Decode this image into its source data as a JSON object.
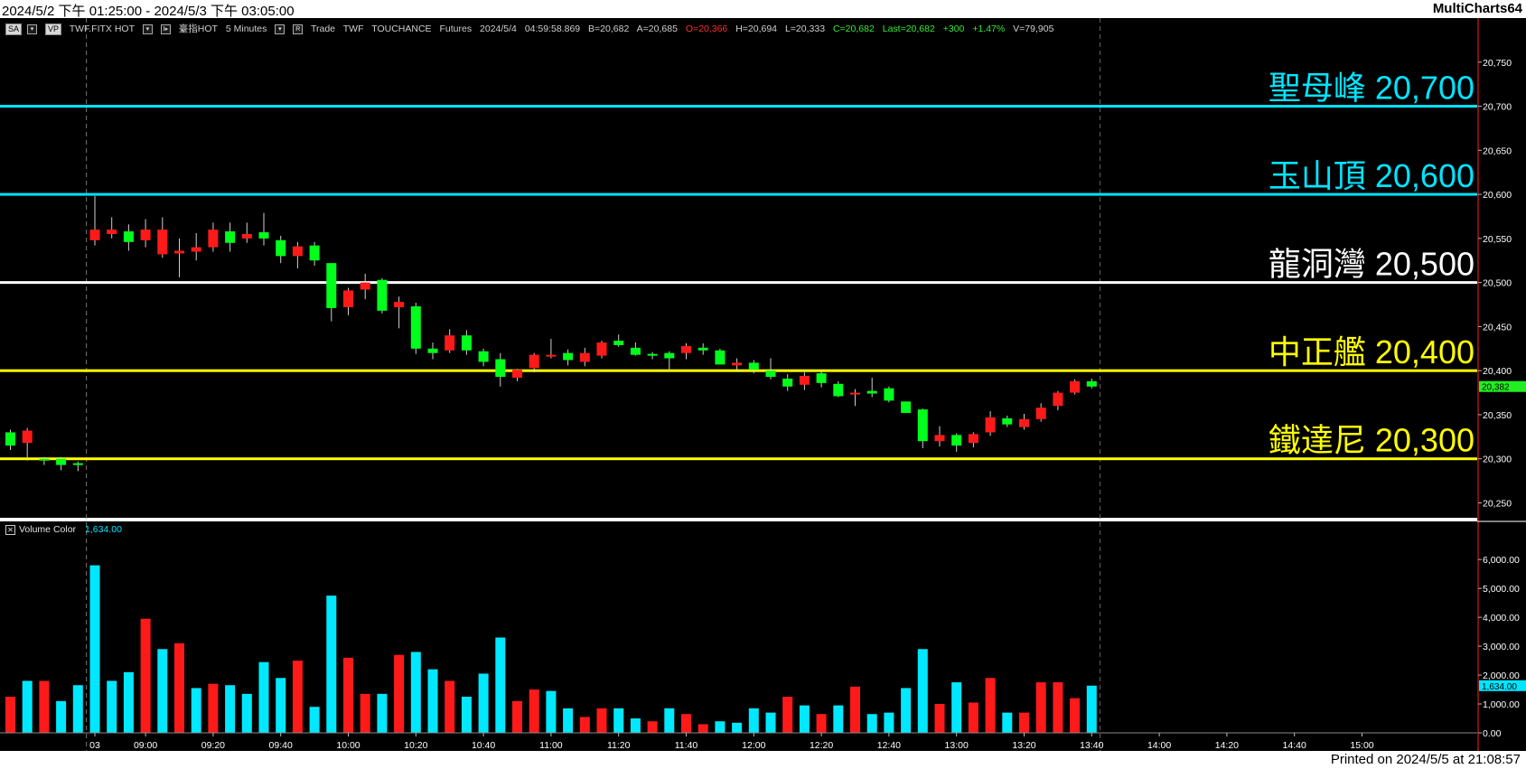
{
  "window": {
    "title_range": "2024/5/2 下午 01:25:00 - 2024/5/3 下午 03:05:00",
    "app_name": "MultiCharts64",
    "printed_on": "Printed on 2024/5/5 at 21:08:57"
  },
  "toolbar": {
    "sa_btn": "SA",
    "vp_btn": "VP",
    "symbol": "TWF.FITX HOT",
    "symbol_name": "臺指HOT",
    "interval": "5 Minutes",
    "r_btn": "R",
    "mode": "Trade",
    "exchange": "TWF",
    "datasource": "TOUCHANCE",
    "category": "Futures",
    "date": "2024/5/4",
    "time": "04:59:58.869",
    "bid": "B=20,682",
    "ask": "A=20,685",
    "open": "O=20,366",
    "high": "H=20,694",
    "low": "L=20,333",
    "close": "C=20,682",
    "last": "Last=20,682",
    "change": "+300",
    "change_pct": "+1.47%",
    "volume": "V=79,905"
  },
  "volume_panel": {
    "label": "Volume Color",
    "value": "1,634.00"
  },
  "colors": {
    "up": "#ff1a1a",
    "down": "#00ff1a",
    "vol_cyan": "#00e8ff",
    "vol_red": "#ff1a1a",
    "cyan_line": "#00e5ff",
    "white_line": "#ffffff",
    "yellow_line": "#ffff00"
  },
  "chart_data": [
    {
      "type": "candlestick",
      "title": "",
      "price_axis": {
        "ylim": [
          20230,
          20800
        ],
        "ticks": [
          20250,
          20300,
          20350,
          20400,
          20450,
          20500,
          20550,
          20600,
          20650,
          20700,
          20750
        ],
        "tick_labels": [
          "20,250",
          "20,300",
          "20,350",
          "20,400",
          "20,450",
          "20,500",
          "20,550",
          "20,600",
          "20,650",
          "20,700",
          "20,750"
        ]
      },
      "time_axis": {
        "tick_labels": [
          "03",
          "09:00",
          "09:20",
          "09:40",
          "10:00",
          "10:20",
          "10:40",
          "11:00",
          "11:20",
          "11:40",
          "12:00",
          "12:20",
          "12:40",
          "13:00",
          "13:20",
          "13:40",
          "14:00",
          "14:20",
          "14:40",
          "15:00"
        ],
        "tick_bar_index": [
          5,
          8,
          12,
          16,
          20,
          24,
          28,
          32,
          36,
          40,
          44,
          48,
          52,
          56,
          60,
          64,
          68,
          72,
          76,
          80
        ],
        "session_break_bar_index": 4.5,
        "last_bar_marker_index": 64.5
      },
      "current_price": 20382,
      "current_price_label": "20,382",
      "levels": [
        {
          "name": "聖母峰",
          "value_label": "20,700",
          "price": 20700,
          "color": "#00e5ff"
        },
        {
          "name": "玉山頂",
          "value_label": "20,600",
          "price": 20600,
          "color": "#00e5ff"
        },
        {
          "name": "龍洞灣",
          "value_label": "20,500",
          "price": 20500,
          "color": "#ffffff"
        },
        {
          "name": "中正艦",
          "value_label": "20,400",
          "price": 20400,
          "color": "#ffff00"
        },
        {
          "name": "鐵達尼",
          "value_label": "20,300",
          "price": 20300,
          "color": "#ffff00"
        }
      ],
      "candles": [
        [
          20330,
          20333,
          20310,
          20315
        ],
        [
          20318,
          20335,
          20298,
          20332
        ],
        [
          20300,
          20302,
          20293,
          20298
        ],
        [
          20300,
          20302,
          20287,
          20293
        ],
        [
          20295,
          20297,
          20286,
          20293
        ],
        [
          20548,
          20598,
          20542,
          20560
        ],
        [
          20555,
          20574,
          20550,
          20560
        ],
        [
          20558,
          20566,
          20536,
          20546
        ],
        [
          20548,
          20572,
          20540,
          20560
        ],
        [
          20532,
          20574,
          20528,
          20560
        ],
        [
          20533,
          20550,
          20506,
          20536
        ],
        [
          20535,
          20556,
          20525,
          20540
        ],
        [
          20540,
          20568,
          20535,
          20560
        ],
        [
          20558,
          20568,
          20535,
          20545
        ],
        [
          20550,
          20568,
          20545,
          20555
        ],
        [
          20557,
          20579,
          20542,
          20550
        ],
        [
          20548,
          20553,
          20522,
          20530
        ],
        [
          20530,
          20546,
          20516,
          20541
        ],
        [
          20542,
          20546,
          20519,
          20525
        ],
        [
          20522,
          20522,
          20456,
          20471
        ],
        [
          20472,
          20494,
          20463,
          20491
        ],
        [
          20492,
          20510,
          20481,
          20500
        ],
        [
          20503,
          20505,
          20465,
          20468
        ],
        [
          20472,
          20484,
          20448,
          20478
        ],
        [
          20473,
          20477,
          20419,
          20425
        ],
        [
          20425,
          20432,
          20413,
          20420
        ],
        [
          20423,
          20447,
          20420,
          20440
        ],
        [
          20440,
          20446,
          20418,
          20423
        ],
        [
          20422,
          20425,
          20405,
          20410
        ],
        [
          20413,
          20420,
          20382,
          20393
        ],
        [
          20392,
          20402,
          20388,
          20401
        ],
        [
          20403,
          20420,
          20398,
          20418
        ],
        [
          20416,
          20436,
          20414,
          20418
        ],
        [
          20420,
          20424,
          20406,
          20412
        ],
        [
          20410,
          20426,
          20405,
          20420
        ],
        [
          20417,
          20434,
          20414,
          20432
        ],
        [
          20434,
          20441,
          20427,
          20429
        ],
        [
          20426,
          20432,
          20417,
          20418
        ],
        [
          20419,
          20421,
          20413,
          20418
        ],
        [
          20420,
          20422,
          20400,
          20414
        ],
        [
          20420,
          20431,
          20413,
          20428
        ],
        [
          20426,
          20431,
          20418,
          20423
        ],
        [
          20423,
          20425,
          20407,
          20407
        ],
        [
          20406,
          20414,
          20401,
          20409
        ],
        [
          20409,
          20412,
          20397,
          20401
        ],
        [
          20400,
          20414,
          20390,
          20393
        ],
        [
          20391,
          20396,
          20377,
          20382
        ],
        [
          20384,
          20398,
          20378,
          20394
        ],
        [
          20397,
          20399,
          20381,
          20386
        ],
        [
          20385,
          20388,
          20370,
          20371
        ],
        [
          20375,
          20379,
          20360,
          20375
        ],
        [
          20377,
          20392,
          20370,
          20374
        ],
        [
          20380,
          20382,
          20364,
          20366
        ],
        [
          20365,
          20365,
          20352,
          20352
        ],
        [
          20356,
          20357,
          20312,
          20320
        ],
        [
          20320,
          20337,
          20314,
          20327
        ],
        [
          20327,
          20329,
          20308,
          20315
        ],
        [
          20318,
          20330,
          20313,
          20328
        ],
        [
          20330,
          20354,
          20326,
          20347
        ],
        [
          20346,
          20349,
          20336,
          20339
        ],
        [
          20336,
          20351,
          20333,
          20345
        ],
        [
          20345,
          20363,
          20342,
          20358
        ],
        [
          20360,
          20377,
          20355,
          20375
        ],
        [
          20375,
          20390,
          20373,
          20388
        ],
        [
          20388,
          20391,
          20380,
          20382
        ]
      ]
    },
    {
      "type": "bar",
      "title": "",
      "ylim": [
        0,
        6600
      ],
      "ticks": [
        0,
        1000,
        2000,
        3000,
        4000,
        5000,
        6000
      ],
      "tick_labels": [
        "0.00",
        "1,000.00",
        "2,000.00",
        "3,000.00",
        "4,000.00",
        "5,000.00",
        "6,000.00"
      ],
      "current_value": 1634,
      "current_value_label": "1,634.00",
      "values": [
        1250,
        1800,
        1800,
        1100,
        1650,
        5800,
        1800,
        2100,
        3950,
        2900,
        3100,
        1550,
        1700,
        1650,
        1350,
        2450,
        1900,
        2500,
        900,
        4750,
        2600,
        1350,
        1350,
        2700,
        2800,
        2200,
        1800,
        1250,
        2050,
        3300,
        1100,
        1500,
        1450,
        850,
        550,
        850,
        850,
        500,
        400,
        850,
        650,
        300,
        400,
        350,
        850,
        700,
        1250,
        950,
        650,
        950,
        1600,
        650,
        700,
        1550,
        2900,
        1000,
        1750,
        1050,
        1900,
        700,
        700,
        1750,
        1750,
        1200,
        1634
      ],
      "colors": [
        "red",
        "cyan",
        "red",
        "cyan",
        "cyan",
        "cyan",
        "cyan",
        "cyan",
        "red",
        "cyan",
        "red",
        "cyan",
        "red",
        "cyan",
        "cyan",
        "cyan",
        "cyan",
        "red",
        "cyan",
        "cyan",
        "red",
        "red",
        "cyan",
        "red",
        "cyan",
        "cyan",
        "red",
        "cyan",
        "cyan",
        "cyan",
        "red",
        "red",
        "cyan",
        "cyan",
        "red",
        "red",
        "cyan",
        "cyan",
        "red",
        "cyan",
        "red",
        "red",
        "cyan",
        "cyan",
        "cyan",
        "cyan",
        "red",
        "cyan",
        "red",
        "cyan",
        "red",
        "cyan",
        "cyan",
        "cyan",
        "cyan",
        "red",
        "cyan",
        "red",
        "red",
        "cyan",
        "red",
        "red",
        "red",
        "red",
        "cyan"
      ]
    }
  ]
}
